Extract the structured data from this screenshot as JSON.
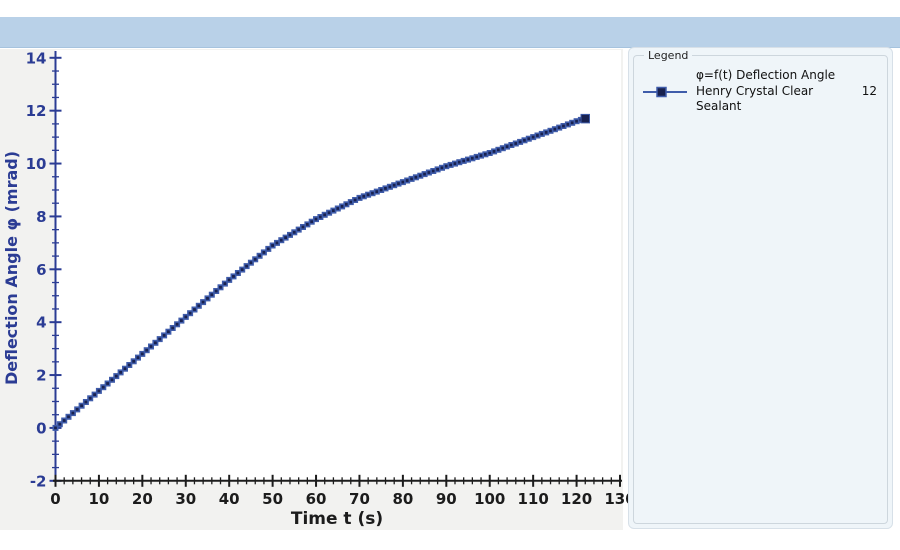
{
  "window": {
    "topbar_color": "#b9d1e8"
  },
  "legend": {
    "title": "Legend",
    "entries": [
      {
        "label_line1": "φ=f(t) Deflection Angle",
        "label_line2": "Henry Crystal Clear Sealant",
        "value": "12"
      }
    ]
  },
  "chart_data": {
    "type": "line",
    "title": "",
    "xlabel": "Time t (s)",
    "ylabel": "Deflection Angle φ (mrad)",
    "xlim": [
      0,
      130
    ],
    "ylim": [
      -2,
      14
    ],
    "x_major_step": 10,
    "x_minor_step": 2,
    "y_major_step": 2,
    "y_minor_step": 0.5,
    "grid": false,
    "legend_position": "right-panel",
    "marker_interval_s": 1,
    "series": [
      {
        "name": "φ=f(t) Deflection Angle — Henry Crystal Clear Sealant 12",
        "x": [
          0,
          5,
          10,
          15,
          20,
          25,
          30,
          35,
          40,
          45,
          50,
          55,
          60,
          65,
          70,
          75,
          80,
          85,
          90,
          95,
          100,
          105,
          110,
          115,
          120,
          122
        ],
        "y": [
          0,
          0.7,
          1.4,
          2.1,
          2.8,
          3.5,
          4.2,
          4.9,
          5.6,
          6.25,
          6.9,
          7.4,
          7.9,
          8.3,
          8.7,
          9.0,
          9.3,
          9.6,
          9.9,
          10.15,
          10.4,
          10.7,
          11.0,
          11.3,
          11.6,
          11.7
        ]
      }
    ],
    "style": {
      "chart_bg": "#f2f2f0",
      "plot_bg": "#ffffff",
      "x_axis_color": "#1c1c1c",
      "y_axis_color": "#2b3c94",
      "line_color": "#3f5caa",
      "marker_color": "#18214f",
      "panel_bg": "#eff5f9",
      "panel_border": "#d7e0e8"
    }
  }
}
